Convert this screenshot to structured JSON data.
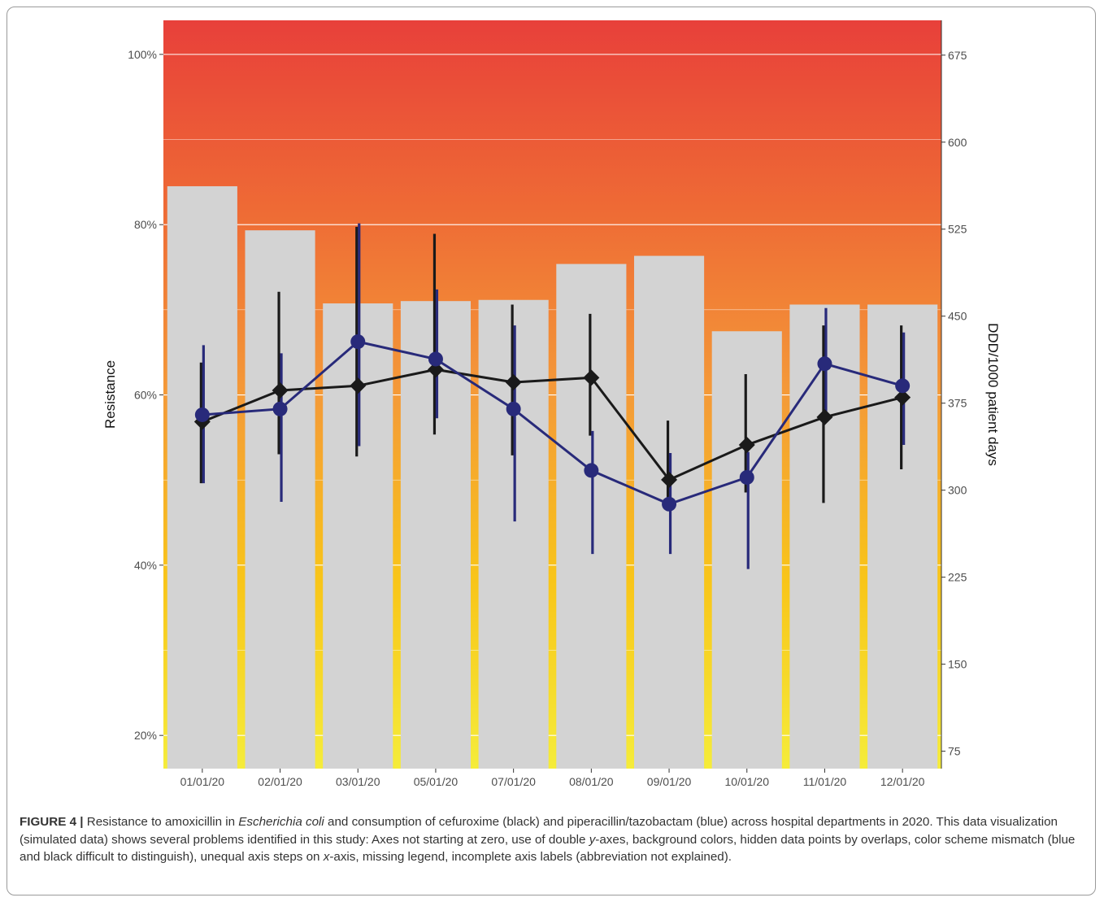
{
  "chart_data": {
    "type": "bar",
    "title": "",
    "categories": [
      "01/01/20",
      "02/01/20",
      "03/01/20",
      "05/01/20",
      "07/01/20",
      "08/01/20",
      "09/01/20",
      "10/01/20",
      "11/01/20",
      "12/01/20"
    ],
    "ylabel": "Resistance",
    "y2label": "DDD/1000 patient days",
    "ylim": [
      0.161,
      1.04
    ],
    "y_ticks": [
      0.2,
      0.4,
      0.6,
      0.8,
      1.0
    ],
    "y_tick_labels": [
      "20%",
      "40%",
      "60%",
      "80%",
      "100%"
    ],
    "y2lim": [
      60,
      705
    ],
    "y2_ticks": [
      75,
      150,
      225,
      300,
      375,
      450,
      525,
      600,
      675
    ],
    "grid": true,
    "legend": "none",
    "background_gradient": [
      "#f5ec3a",
      "#f8c519",
      "#f49a38",
      "#ee6a35",
      "#e8403a"
    ],
    "bar_color": "#d3d3d3",
    "bars": {
      "name": "",
      "axis": "right",
      "values": [
        562,
        524,
        461,
        463,
        464,
        495,
        502,
        437,
        460,
        460
      ]
    },
    "series": [
      {
        "name": "",
        "axis": "right",
        "color": "#1a1a1a",
        "marker": "diamond",
        "values": [
          359,
          386,
          390,
          404,
          393,
          397,
          309,
          339,
          363,
          380
        ],
        "lower": [
          306,
          331,
          329,
          348,
          330,
          347,
          282,
          298,
          289,
          318
        ],
        "upper": [
          410,
          471,
          527,
          521,
          460,
          452,
          360,
          400,
          442,
          442
        ]
      },
      {
        "name": "",
        "axis": "right",
        "color": "#282a7a",
        "marker": "circle",
        "values": [
          365,
          370,
          428,
          413,
          370,
          317,
          288,
          311,
          409,
          390
        ],
        "lower": [
          306,
          290,
          338,
          362,
          273,
          245,
          245,
          232,
          366,
          339
        ],
        "upper": [
          425,
          418,
          530,
          473,
          442,
          351,
          332,
          333,
          457,
          436
        ]
      }
    ]
  },
  "caption": {
    "figure_label": "FIGURE 4 |",
    "text_1": " Resistance to amoxicillin in ",
    "organism": "Escherichia coli",
    "text_2": " and consumption of cefuroxime (black) and piperacillin/tazobactam (blue) across hospital departments in 2020. This data visualization (simulated data) shows several problems identified in this study: Axes not starting at zero, use of double ",
    "y_italic": "y",
    "text_3": "-axes, background colors, hidden data points by overlaps, color scheme mismatch (blue and black difficult to distinguish), unequal axis steps on ",
    "x_italic": "x",
    "text_4": "-axis, missing legend, incomplete axis labels (abbreviation not explained)."
  }
}
